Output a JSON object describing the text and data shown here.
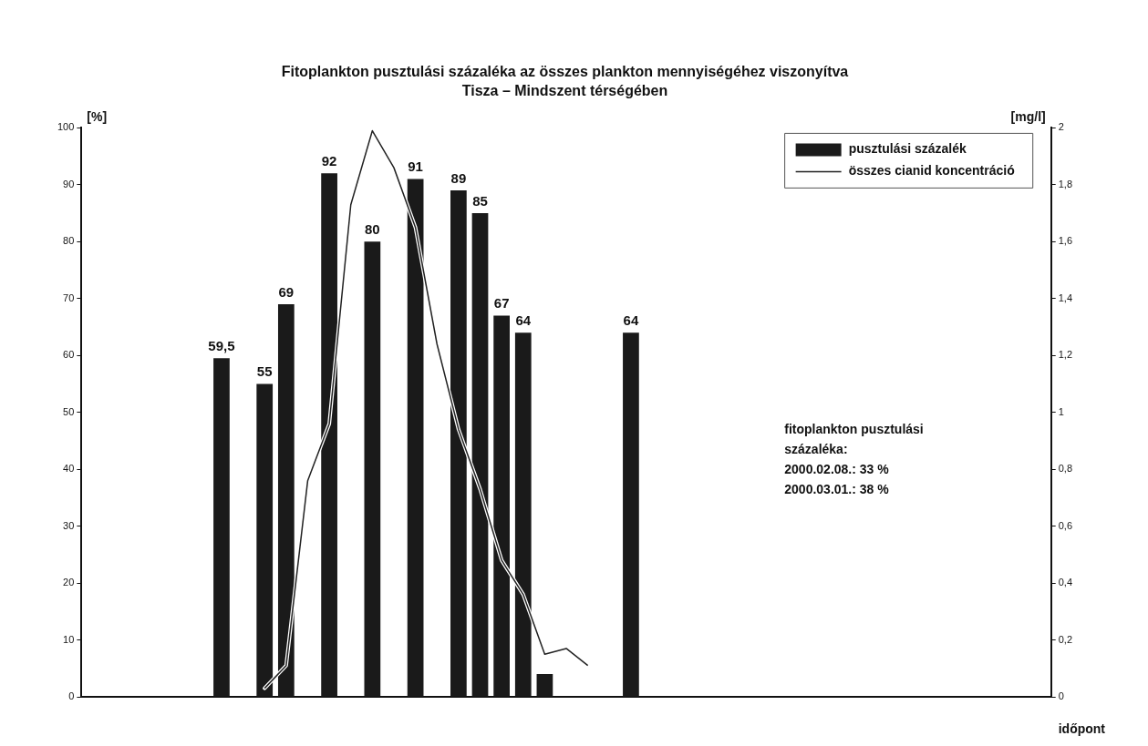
{
  "chart_data": {
    "type": "bar",
    "title": "Fitoplankton pusztulási százaléka az összes plankton mennyiségéhez viszonyítva",
    "subtitle": "Tisza – Mindszent térségében",
    "xlabel": "időpont",
    "ylabel": "[%]",
    "y2label": "[mg/l]",
    "categories": [
      null,
      null,
      null,
      null,
      null,
      null,
      null,
      null,
      null,
      null,
      null,
      null,
      null,
      null,
      null,
      null,
      null,
      null,
      null,
      null,
      null,
      null,
      null,
      null,
      null,
      null,
      null,
      null,
      null,
      null,
      null,
      null,
      null,
      null,
      null,
      null,
      null,
      null,
      null,
      null,
      null,
      null,
      null,
      null,
      null
    ],
    "series": [
      {
        "name": "pusztulási százalék",
        "color": "#1a1a1a",
        "values": [
          null,
          null,
          null,
          null,
          null,
          null,
          59.5,
          null,
          55,
          69,
          null,
          92,
          null,
          80,
          null,
          91,
          null,
          89,
          85,
          67,
          64,
          4,
          null,
          null,
          null,
          64,
          null,
          null,
          null,
          null,
          null,
          null,
          null,
          null,
          null,
          null,
          null,
          null,
          null,
          null,
          null,
          null,
          null,
          null,
          null
        ],
        "value_labels": [
          null,
          null,
          null,
          null,
          null,
          null,
          "59,5",
          null,
          "55",
          "69",
          null,
          "92",
          null,
          "80",
          null,
          "91",
          null,
          "89",
          "85",
          "67",
          "64",
          null,
          null,
          null,
          null,
          "64",
          null,
          null,
          null,
          null,
          null,
          null,
          null,
          null,
          null,
          null,
          null,
          null,
          null,
          null,
          null,
          null,
          null,
          null,
          null
        ]
      },
      {
        "name": "összes cianid koncentráció",
        "type": "line",
        "axis": "y2",
        "color": "#222222",
        "values": [
          null,
          null,
          null,
          null,
          null,
          null,
          null,
          null,
          0.03,
          0.11,
          0.76,
          0.96,
          1.73,
          1.99,
          1.86,
          1.65,
          1.24,
          0.94,
          0.73,
          0.48,
          0.36,
          0.15,
          0.17,
          0.11,
          null,
          null,
          null,
          null,
          null,
          null,
          null,
          null,
          null,
          null,
          null,
          null,
          null,
          null,
          null,
          null,
          null,
          null,
          null,
          null,
          null
        ]
      }
    ],
    "ylim": [
      0,
      100
    ],
    "yticks": [
      0,
      10,
      20,
      30,
      40,
      50,
      60,
      70,
      80,
      90,
      100
    ],
    "y2lim": [
      0,
      2
    ],
    "y2ticks": [
      {
        "value": 0,
        "label": "0"
      },
      {
        "value": 0.2,
        "label": "0,2"
      },
      {
        "value": 0.4,
        "label": "0,4"
      },
      {
        "value": 0.6,
        "label": "0,6"
      },
      {
        "value": 0.8,
        "label": "0,8"
      },
      {
        "value": 1,
        "label": "1"
      },
      {
        "value": 1.2,
        "label": "1,2"
      },
      {
        "value": 1.4,
        "label": "1,4"
      },
      {
        "value": 1.6,
        "label": "1,6"
      },
      {
        "value": 1.8,
        "label": "1,8"
      },
      {
        "value": 2,
        "label": "2"
      }
    ],
    "annotations": [
      "fitoplankton pusztulási\nszázaléka:\n2000.02.08.: 33 %\n2000.03.01.: 38 %"
    ],
    "grid": false,
    "legend": "top right",
    "marker": "none",
    "line_style": "solid"
  }
}
